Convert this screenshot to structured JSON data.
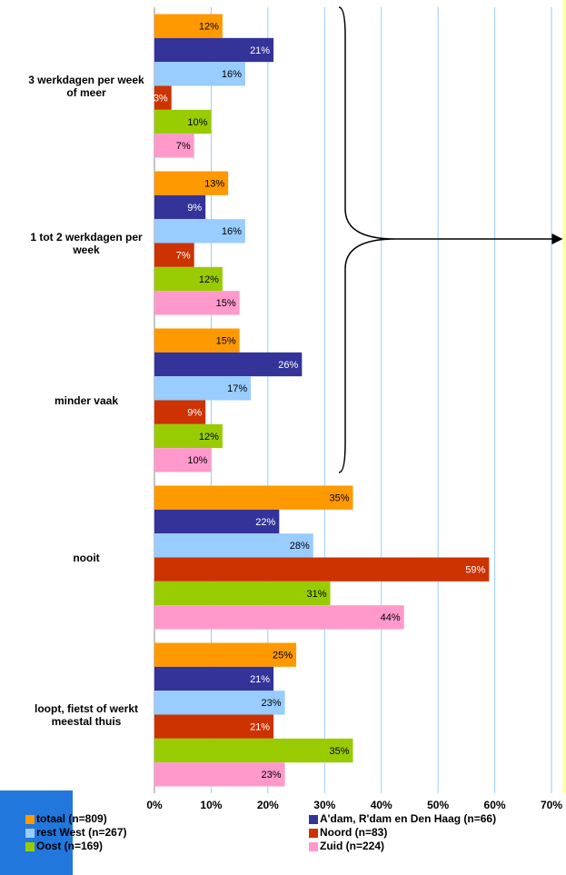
{
  "chart_data": {
    "type": "hbar",
    "categories": [
      "3 werkdagen per week of meer",
      "1 tot 2 werkdagen per week",
      "minder vaak",
      "nooit",
      "loopt, fietst of werkt meestal thuis"
    ],
    "series": [
      {
        "name": "totaal (n=809)",
        "color": "#ff9900",
        "values": [
          12,
          13,
          15,
          35,
          25
        ],
        "value_labels": [
          "12%",
          "13%",
          "15%",
          "35%",
          "25%"
        ]
      },
      {
        "name": "A'dam, R'dam en Den Haag (n=66)",
        "color": "#333399",
        "values": [
          21,
          9,
          26,
          22,
          21
        ],
        "value_labels": [
          "21%",
          "9%",
          "26%",
          "22%",
          "21%"
        ]
      },
      {
        "name": "rest West (n=267)",
        "color": "#99ccff",
        "values": [
          16,
          16,
          17,
          28,
          23
        ],
        "value_labels": [
          "16%",
          "16%",
          "17%",
          "28%",
          "23%"
        ]
      },
      {
        "name": "Noord (n=83)",
        "color": "#cc3300",
        "values": [
          3,
          7,
          9,
          59,
          21
        ],
        "value_labels": [
          "3%",
          "7%",
          "9%",
          "59%",
          "21%"
        ]
      },
      {
        "name": "Oost (n=169)",
        "color": "#99cc00",
        "values": [
          10,
          12,
          12,
          31,
          35
        ],
        "value_labels": [
          "10%",
          "12%",
          "12%",
          "31%",
          "35%"
        ]
      },
      {
        "name": "Zuid (n=224)",
        "color": "#ff99cc",
        "values": [
          7,
          15,
          10,
          44,
          23
        ],
        "value_labels": [
          "7%",
          "15%",
          "10%",
          "44%",
          "23%"
        ]
      }
    ],
    "xlim": [
      0,
      70
    ],
    "xticks": [
      {
        "value": 0,
        "label": "0%"
      },
      {
        "value": 10,
        "label": "10%"
      },
      {
        "value": 20,
        "label": "20%"
      },
      {
        "value": 30,
        "label": "30%"
      },
      {
        "value": 40,
        "label": "40%"
      },
      {
        "value": 50,
        "label": "50%"
      },
      {
        "value": 60,
        "label": "60%"
      },
      {
        "value": 70,
        "label": "70%"
      }
    ],
    "grid": true
  }
}
